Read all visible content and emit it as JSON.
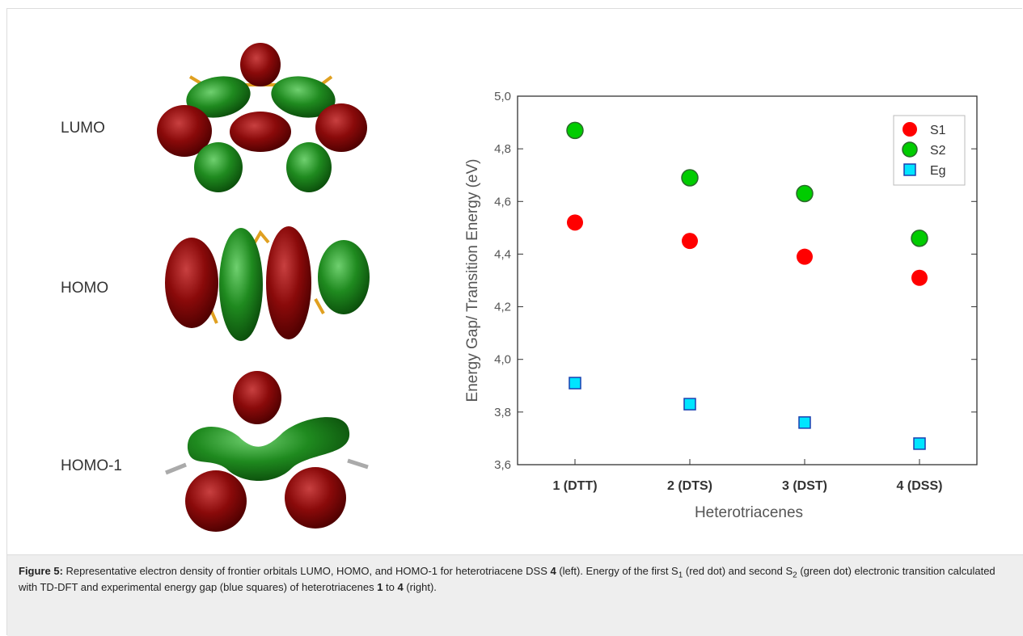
{
  "figure": {
    "orbital_labels": [
      "LUMO",
      "HOMO",
      "HOMO-1"
    ],
    "chart_data": {
      "type": "scatter",
      "x_label": "Heterotriacenes",
      "y_label": "Energy Gap/ Transition Energy (eV)",
      "categories": [
        "1 (DTT)",
        "2 (DTS)",
        "3 (DST)",
        "4 (DSS)"
      ],
      "series": [
        {
          "name": "S1",
          "color": "#ff0000",
          "marker": "circle",
          "values": [
            4.52,
            4.45,
            4.39,
            4.31
          ]
        },
        {
          "name": "S2",
          "color": "#00cc00",
          "marker": "circle",
          "values": [
            4.87,
            4.69,
            4.63,
            4.46
          ]
        },
        {
          "name": "Eg",
          "color": "#00e5ff",
          "marker": "square",
          "values": [
            3.91,
            3.83,
            3.76,
            3.68
          ]
        }
      ],
      "ylim": [
        3.6,
        5.0
      ],
      "yticks": [
        {
          "value": 3.6,
          "label": "3,6"
        },
        {
          "value": 3.8,
          "label": "3,8"
        },
        {
          "value": 4.0,
          "label": "4,0"
        },
        {
          "value": 4.2,
          "label": "4,2"
        },
        {
          "value": 4.4,
          "label": "4,4"
        },
        {
          "value": 4.6,
          "label": "4,6"
        },
        {
          "value": 4.8,
          "label": "4,8"
        },
        {
          "value": 5.0,
          "label": "5,0"
        }
      ],
      "legend": "upper right",
      "grid": false
    },
    "caption": {
      "label": "Figure 5:",
      "parts": [
        " Representative electron density of frontier orbitals LUMO, HOMO, and HOMO-1 for heterotriacene DSS ",
        "4",
        " (left). Energy of the first S",
        "1",
        " (red dot) and second S",
        "2",
        " (green dot) electronic transition calculated with TD-DFT and experimental energy gap (blue squares) of heterotriacenes ",
        "1",
        " to ",
        "4",
        " (right)."
      ]
    }
  }
}
